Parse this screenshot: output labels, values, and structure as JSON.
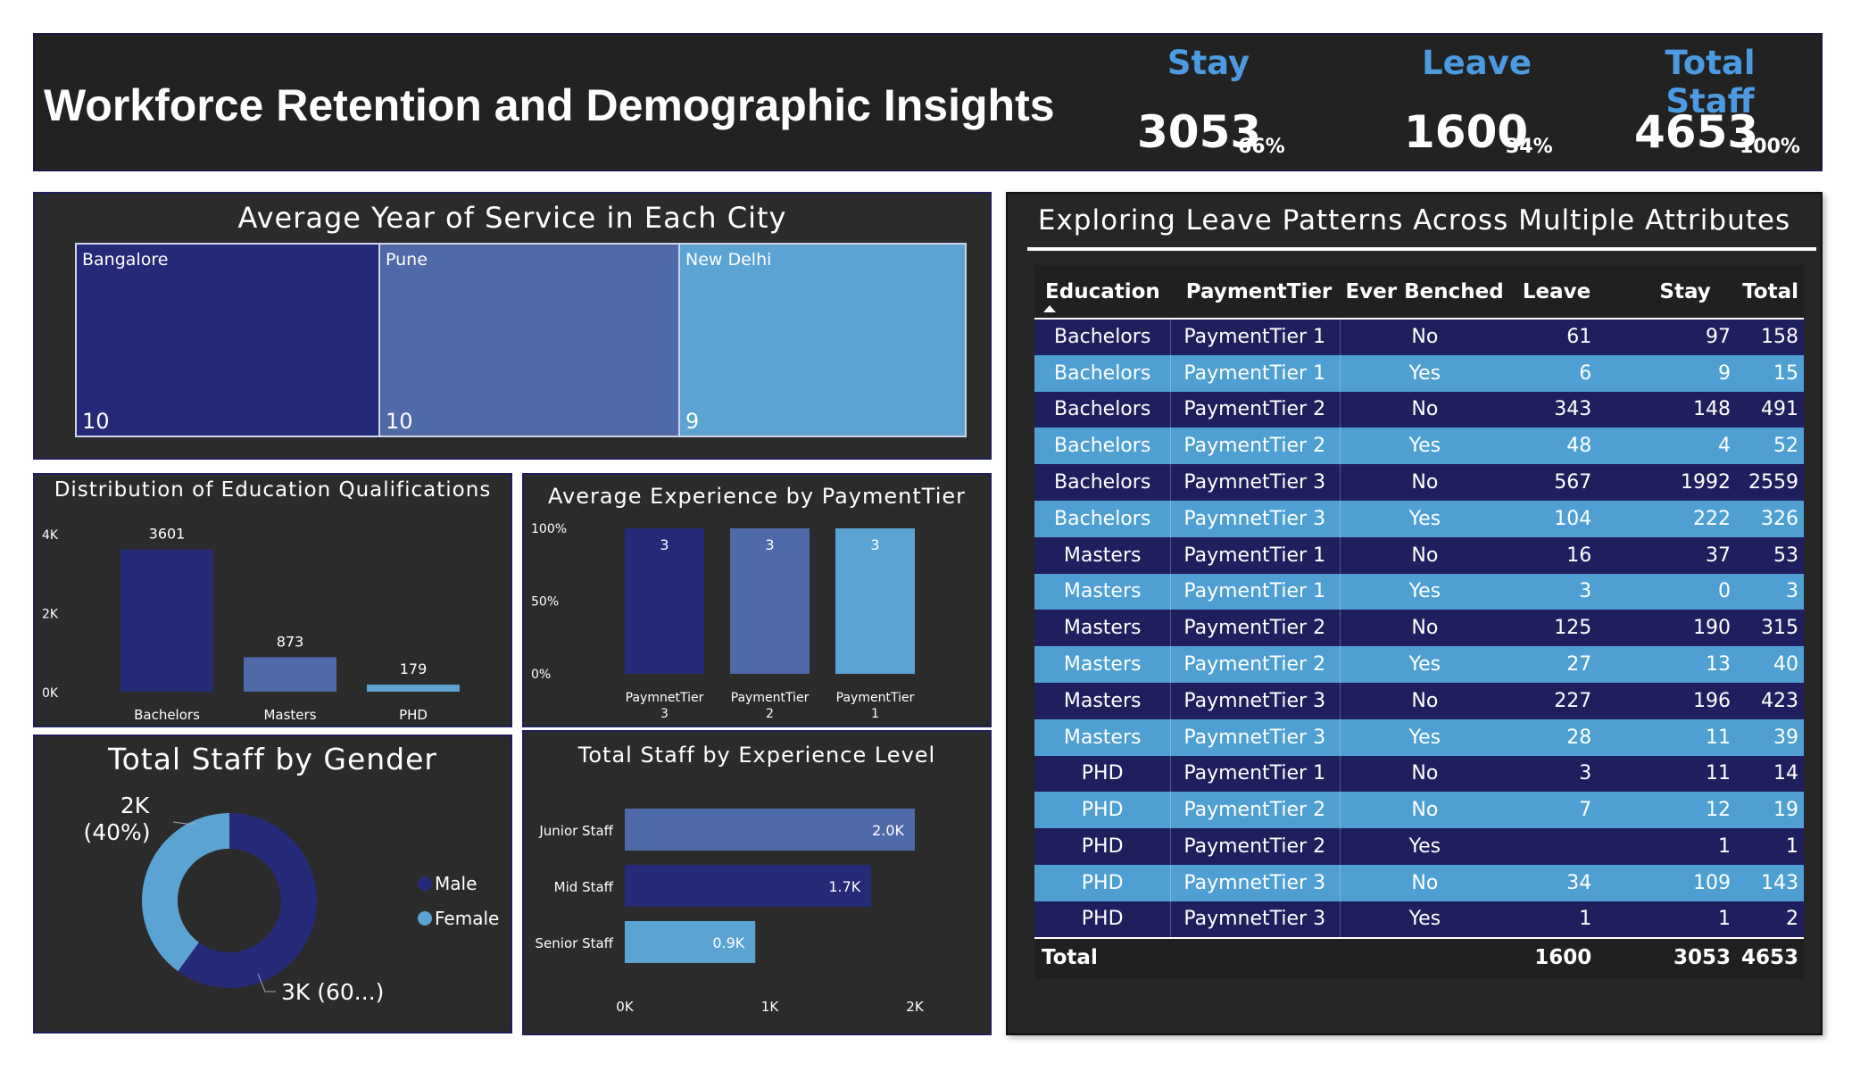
{
  "header": {
    "title": "Workforce Retention and Demographic Insights",
    "kpis": [
      {
        "label": "Stay",
        "value": "3053",
        "pct": "66%"
      },
      {
        "label": "Leave",
        "value": "1600",
        "pct": "34%"
      },
      {
        "label": "Total Staff",
        "value": "4653",
        "pct": "100%"
      }
    ]
  },
  "treemap": {
    "title": "Average Year of Service in Each City",
    "cells": [
      {
        "label": "Bangalore",
        "value": "10",
        "color": "#252a78"
      },
      {
        "label": "Pune",
        "value": "10",
        "color": "#4f6aa8"
      },
      {
        "label": "New Delhi",
        "value": "9",
        "color": "#5aa3d2"
      }
    ]
  },
  "education_chart": {
    "title": "Distribution of Education Qualifications",
    "chart_data": {
      "type": "bar",
      "categories": [
        "Bachelors",
        "Masters",
        "PHD"
      ],
      "values": [
        3601,
        873,
        179
      ],
      "data_labels": [
        "3601",
        "873",
        "179"
      ],
      "y_ticks": [
        "0K",
        "2K",
        "4K"
      ],
      "ylim": [
        0,
        4000
      ],
      "colors": [
        "#252a78",
        "#4f6aa8",
        "#5aa3d2"
      ]
    }
  },
  "experience_chart": {
    "title": "Average Experience by PaymentTier",
    "chart_data": {
      "type": "bar",
      "categories": [
        [
          "PaymnetTier",
          "3"
        ],
        [
          "PaymentTier",
          "2"
        ],
        [
          "PaymentTier",
          "1"
        ]
      ],
      "values": [
        3,
        3,
        3
      ],
      "data_labels": [
        "3",
        "3",
        "3"
      ],
      "y_ticks": [
        "0%",
        "50%",
        "100%"
      ],
      "colors": [
        "#252a78",
        "#4f6aa8",
        "#5aa3d2"
      ]
    }
  },
  "gender_chart": {
    "title": "Total Staff by Gender",
    "chart_data": {
      "type": "pie",
      "slices": [
        {
          "name": "Male",
          "value": 60,
          "label": "3K (60...)",
          "color": "#252a78"
        },
        {
          "name": "Female",
          "value": 40,
          "label": [
            "2K",
            "(40%)"
          ],
          "color": "#5aa3d2"
        }
      ],
      "legend": [
        "Male",
        "Female"
      ]
    }
  },
  "level_chart": {
    "title": "Total Staff by Experience Level",
    "chart_data": {
      "type": "bar",
      "orientation": "horizontal",
      "categories": [
        "Junior Staff",
        "Mid Staff",
        "Senior Staff"
      ],
      "values": [
        2000,
        1700,
        900
      ],
      "data_labels": [
        "2.0K",
        "1.7K",
        "0.9K"
      ],
      "x_ticks": [
        "0K",
        "1K",
        "2K"
      ],
      "xlim": [
        0,
        2000
      ],
      "colors": [
        "#4f6aa8",
        "#252a78",
        "#5aa3d2"
      ]
    }
  },
  "table": {
    "title": "Exploring Leave Patterns Across Multiple Attributes",
    "columns": [
      "Education",
      "PaymentTier",
      "Ever Benched",
      "Leave",
      "Stay",
      "Total"
    ],
    "rows": [
      [
        "Bachelors",
        "PaymentTier 1",
        "No",
        "61",
        "97",
        "158"
      ],
      [
        "Bachelors",
        "PaymentTier 1",
        "Yes",
        "6",
        "9",
        "15"
      ],
      [
        "Bachelors",
        "PaymentTier 2",
        "No",
        "343",
        "148",
        "491"
      ],
      [
        "Bachelors",
        "PaymentTier 2",
        "Yes",
        "48",
        "4",
        "52"
      ],
      [
        "Bachelors",
        "PaymnetTier 3",
        "No",
        "567",
        "1992",
        "2559"
      ],
      [
        "Bachelors",
        "PaymnetTier 3",
        "Yes",
        "104",
        "222",
        "326"
      ],
      [
        "Masters",
        "PaymentTier 1",
        "No",
        "16",
        "37",
        "53"
      ],
      [
        "Masters",
        "PaymentTier 1",
        "Yes",
        "3",
        "0",
        "3"
      ],
      [
        "Masters",
        "PaymentTier 2",
        "No",
        "125",
        "190",
        "315"
      ],
      [
        "Masters",
        "PaymentTier 2",
        "Yes",
        "27",
        "13",
        "40"
      ],
      [
        "Masters",
        "PaymnetTier 3",
        "No",
        "227",
        "196",
        "423"
      ],
      [
        "Masters",
        "PaymnetTier 3",
        "Yes",
        "28",
        "11",
        "39"
      ],
      [
        "PHD",
        "PaymentTier 1",
        "No",
        "3",
        "11",
        "14"
      ],
      [
        "PHD",
        "PaymentTier 2",
        "No",
        "7",
        "12",
        "19"
      ],
      [
        "PHD",
        "PaymentTier 2",
        "Yes",
        "",
        "1",
        "1"
      ],
      [
        "PHD",
        "PaymnetTier 3",
        "No",
        "34",
        "109",
        "143"
      ],
      [
        "PHD",
        "PaymnetTier 3",
        "Yes",
        "1",
        "1",
        "2"
      ]
    ],
    "total": {
      "label": "Total",
      "leave": "1600",
      "stay": "3053",
      "total": "4653"
    }
  }
}
